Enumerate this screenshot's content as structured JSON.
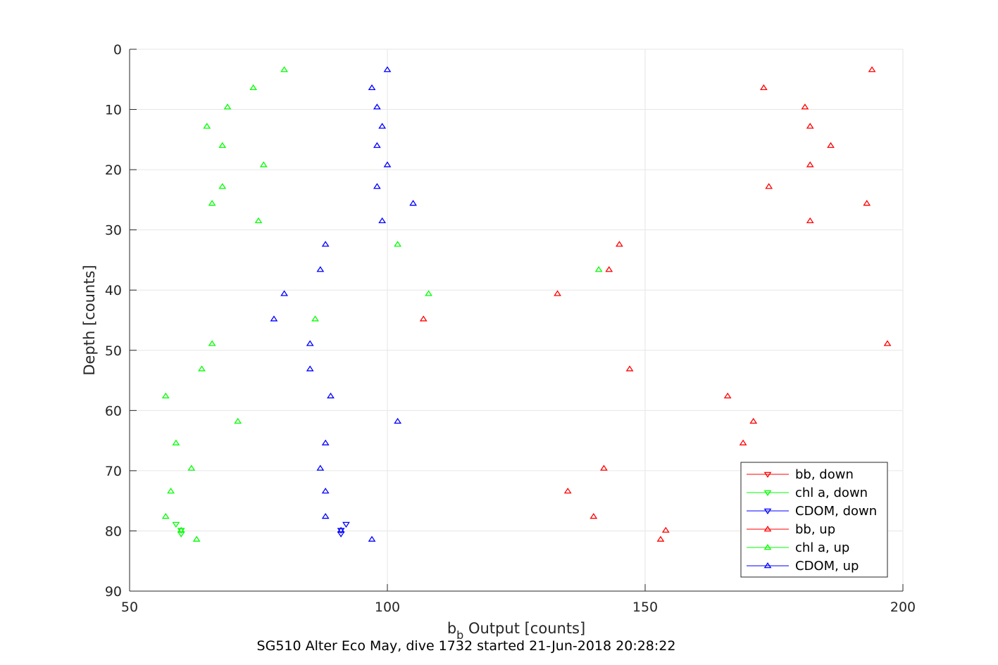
{
  "chart_data": {
    "type": "scatter",
    "title": "SG510 Alter Eco May, dive 1732 started 21-Jun-2018 20:28:22",
    "xlabel": "b",
    "xlabel_sub": "b",
    "xlabel_rest": " Output [counts]",
    "ylabel": "Depth [counts]",
    "xlim": [
      50,
      200
    ],
    "ylim": [
      0,
      90
    ],
    "y_reversed": true,
    "grid": true,
    "legend_position": "bottom-right",
    "xticks": [
      50,
      100,
      150,
      200
    ],
    "yticks": [
      0,
      10,
      20,
      30,
      40,
      50,
      60,
      70,
      80,
      90
    ],
    "series": [
      {
        "name": "bb, down",
        "color": "#ff0000",
        "marker": "triangle-down",
        "x": [],
        "y": []
      },
      {
        "name": "chl a, down",
        "color": "#00ff00",
        "marker": "triangle-down",
        "x": [
          59,
          60,
          60
        ],
        "y": [
          78.9,
          79.9,
          80.5
        ]
      },
      {
        "name": "CDOM, down",
        "color": "#0000ff",
        "marker": "triangle-down",
        "x": [
          92,
          91,
          91
        ],
        "y": [
          78.9,
          79.9,
          80.5
        ]
      },
      {
        "name": "bb, up",
        "color": "#ff0000",
        "marker": "triangle-up",
        "x": [
          194,
          173,
          181,
          182,
          186,
          182,
          174,
          193,
          182,
          145,
          143,
          133,
          107,
          197,
          147,
          166,
          171,
          169,
          142,
          135,
          140,
          154,
          153
        ],
        "y": [
          3.4,
          6.4,
          9.6,
          12.8,
          16.0,
          19.2,
          22.8,
          25.6,
          28.5,
          32.4,
          36.6,
          40.6,
          44.8,
          48.9,
          53.1,
          57.6,
          61.8,
          65.4,
          69.6,
          73.4,
          77.6,
          79.9,
          81.4
        ]
      },
      {
        "name": "chl a, up",
        "color": "#00ff00",
        "marker": "triangle-up",
        "x": [
          80,
          74,
          69,
          65,
          68,
          76,
          68,
          66,
          75,
          102,
          141,
          108,
          86,
          66,
          64,
          57,
          71,
          59,
          62,
          58,
          57,
          60,
          63
        ],
        "y": [
          3.4,
          6.4,
          9.6,
          12.8,
          16.0,
          19.2,
          22.8,
          25.6,
          28.5,
          32.4,
          36.6,
          40.6,
          44.8,
          48.9,
          53.1,
          57.6,
          61.8,
          65.4,
          69.6,
          73.4,
          77.6,
          79.9,
          81.4
        ]
      },
      {
        "name": "CDOM, up",
        "color": "#0000ff",
        "marker": "triangle-up",
        "x": [
          100,
          97,
          98,
          99,
          98,
          100,
          98,
          105,
          99,
          88,
          87,
          80,
          78,
          85,
          85,
          89,
          102,
          88,
          87,
          88,
          88,
          91,
          97
        ],
        "y": [
          3.4,
          6.4,
          9.6,
          12.8,
          16.0,
          19.2,
          22.8,
          25.6,
          28.5,
          32.4,
          36.6,
          40.6,
          44.8,
          48.9,
          53.1,
          57.6,
          61.8,
          65.4,
          69.6,
          73.4,
          77.6,
          79.9,
          81.4
        ]
      }
    ]
  }
}
